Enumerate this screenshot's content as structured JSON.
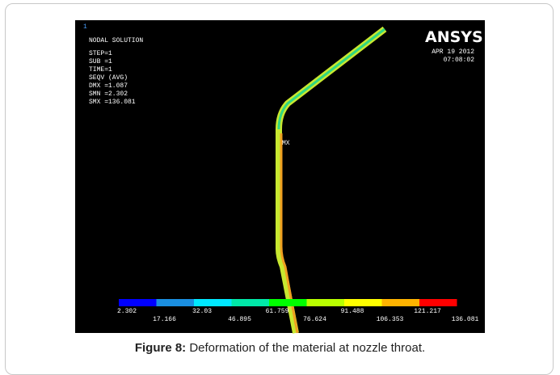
{
  "figure": {
    "viewport_number": "1",
    "info": [
      "NODAL SOLUTION",
      "STEP=1",
      "SUB =1",
      "TIME=1",
      "SEQV     (AVG)",
      "DMX =1.087",
      "SMN =2.302",
      "SMX =136.081"
    ],
    "logo": "ANSYS",
    "date": "APR 19 2012",
    "time": "07:08:02",
    "max_marker": "MX",
    "legend": {
      "labels": [
        "2.302",
        "17.166",
        "32.03",
        "46.895",
        "61.759",
        "76.624",
        "91.488",
        "106.353",
        "121.217",
        "136.081"
      ],
      "colors": [
        "#0000ff",
        "#1a8fe0",
        "#00e8ff",
        "#00e8a8",
        "#00ff00",
        "#b8ff00",
        "#ffff00",
        "#ffb400",
        "#ff0000"
      ]
    }
  },
  "caption": {
    "label": "Figure 8:",
    "text": "Deformation of the material at nozzle throat."
  }
}
